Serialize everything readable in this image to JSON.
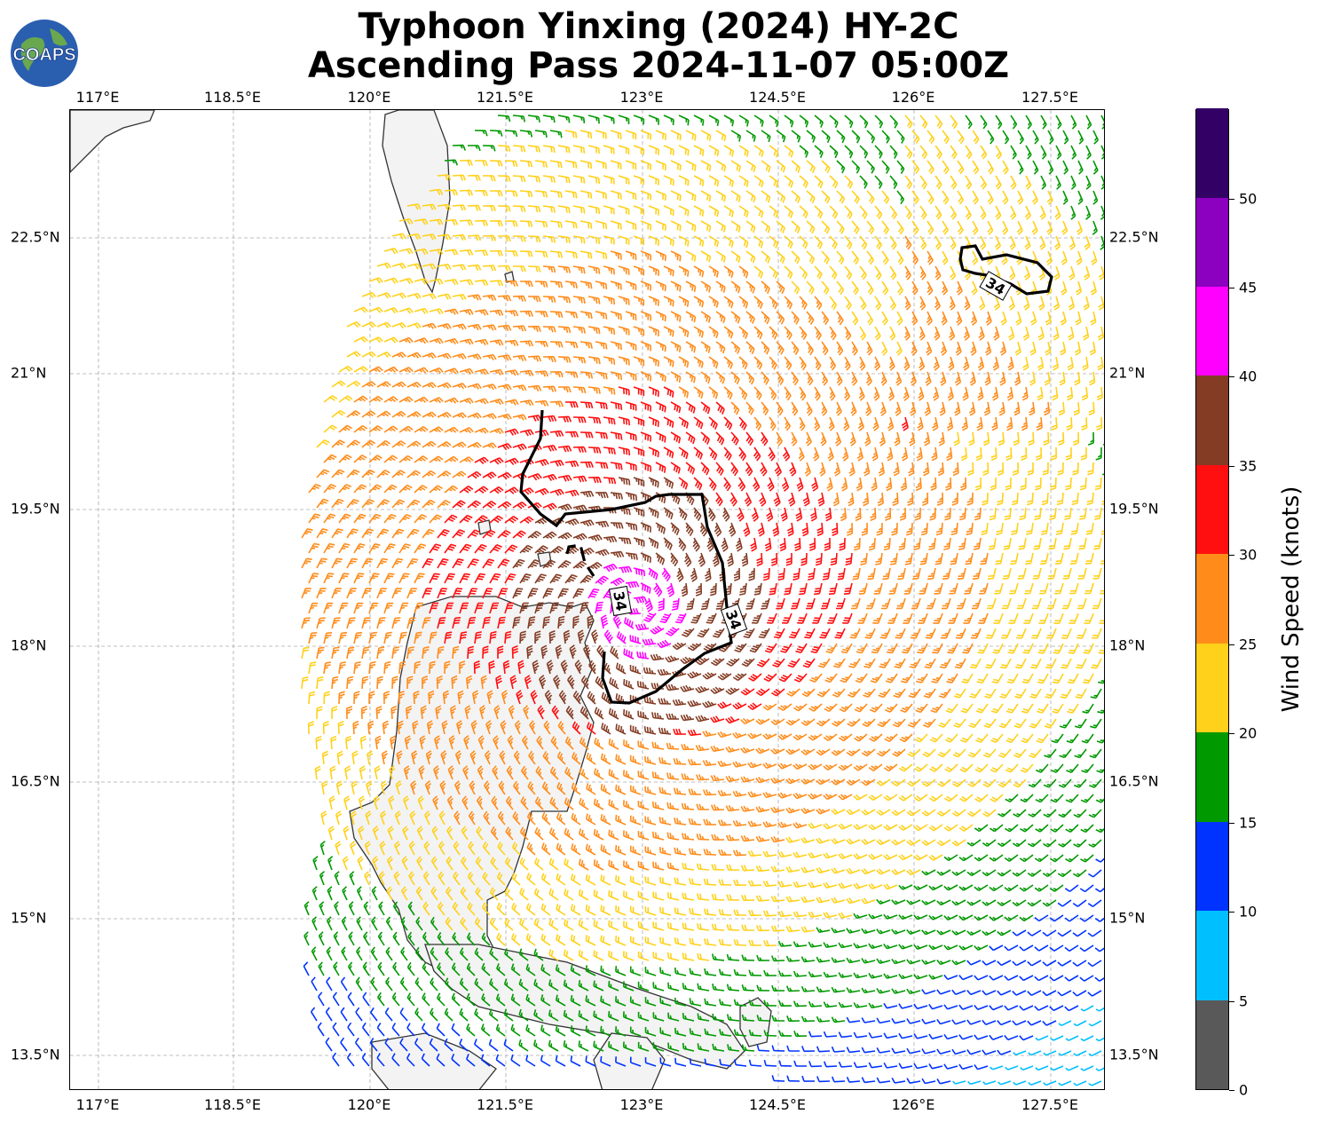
{
  "title_line1": "Typhoon Yinxing (2024) HY-2C",
  "title_line2": "Ascending Pass 2024-11-07 05:00Z",
  "logo_text": "COAPS",
  "lon_labels": [
    "117°E",
    "118.5°E",
    "120°E",
    "121.5°E",
    "123°E",
    "124.5°E",
    "126°E",
    "127.5°E"
  ],
  "lat_labels": [
    "22.5°N",
    "21°N",
    "19.5°N",
    "18°N",
    "16.5°N",
    "15°N",
    "13.5°N"
  ],
  "contour_label": "34",
  "colorbar": {
    "title": "Wind Speed (knots)",
    "tick_labels": [
      "0",
      "5",
      "10",
      "15",
      "20",
      "25",
      "30",
      "35",
      "40",
      "45",
      "50"
    ],
    "colors": [
      "#595959",
      "#00bfff",
      "#0033ff",
      "#009900",
      "#ffd11a",
      "#ff8c1a",
      "#ff0f0f",
      "#843c24",
      "#ff00ff",
      "#8c00bf",
      "#330066"
    ]
  }
}
